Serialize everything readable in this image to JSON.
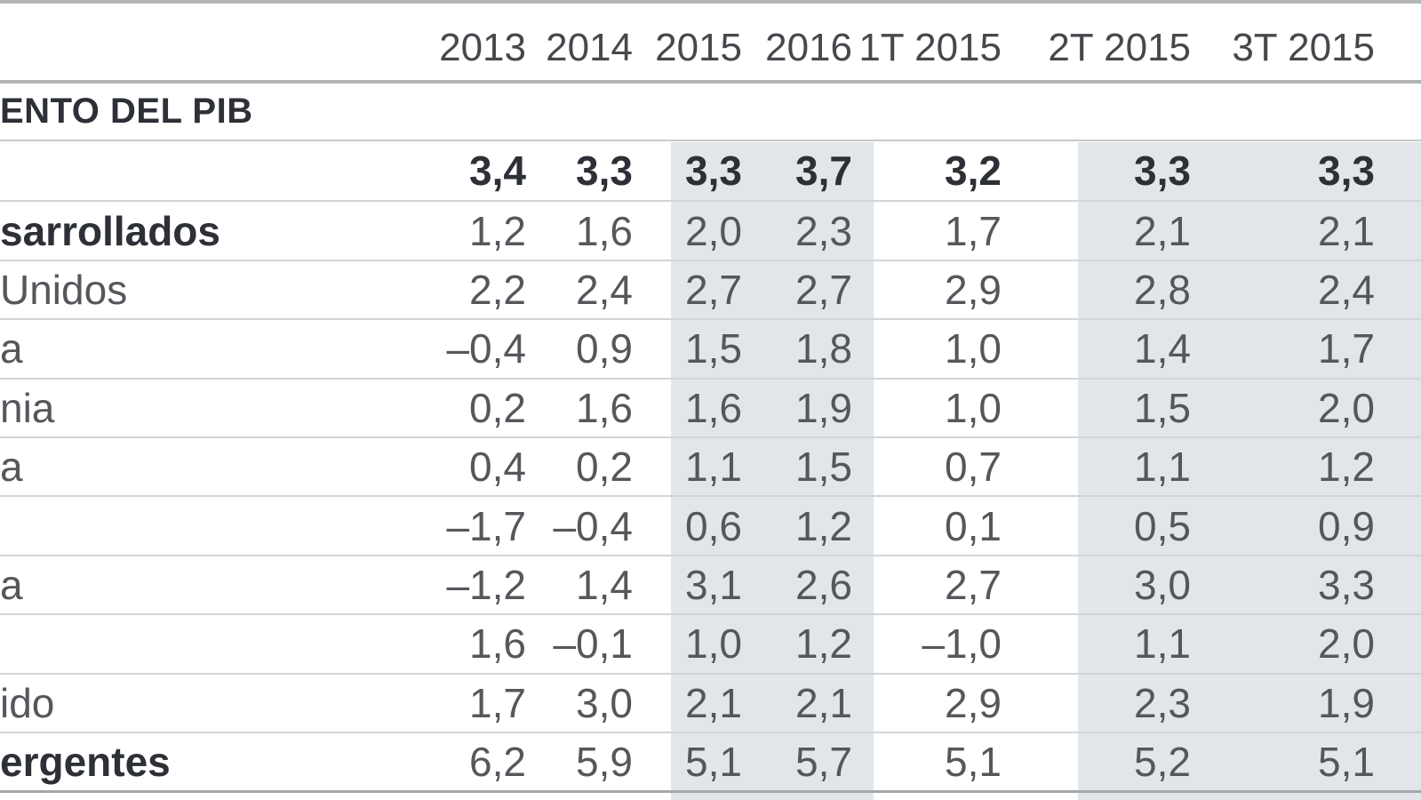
{
  "colors": {
    "band_background": "#e3e6e8",
    "top_bar": "#b4b7b9",
    "thick_rule": "#b1b5b7",
    "row_separator": "#d2d5d7",
    "bottom_rule": "#a4a8ab",
    "text_regular": "#54575b",
    "text_bold": "#2d3036",
    "header_text": "#45484c"
  },
  "chart_data": {
    "type": "table",
    "section_title": "ENTO DEL PIB",
    "columns": [
      "2013",
      "2014",
      "2015",
      "2016",
      "1T 2015",
      "2T 2015",
      "3T 2015"
    ],
    "shaded_columns": [
      "2015",
      "2016",
      "2T 2015",
      "3T 2015"
    ],
    "rows": [
      {
        "label": "",
        "label_bold": false,
        "values_bold": true,
        "values": [
          "3,4",
          "3,3",
          "3,3",
          "3,7",
          "3,2",
          "3,3",
          "3,3"
        ]
      },
      {
        "label": "sarrollados",
        "label_bold": true,
        "values_bold": false,
        "values": [
          "1,2",
          "1,6",
          "2,0",
          "2,3",
          "1,7",
          "2,1",
          "2,1"
        ]
      },
      {
        "label": "Unidos",
        "label_bold": false,
        "values_bold": false,
        "values": [
          "2,2",
          "2,4",
          "2,7",
          "2,7",
          "2,9",
          "2,8",
          "2,4"
        ]
      },
      {
        "label": "a",
        "label_bold": false,
        "values_bold": false,
        "values": [
          "–0,4",
          "0,9",
          "1,5",
          "1,8",
          "1,0",
          "1,4",
          "1,7"
        ]
      },
      {
        "label": "nia",
        "label_bold": false,
        "values_bold": false,
        "values": [
          "0,2",
          "1,6",
          "1,6",
          "1,9",
          "1,0",
          "1,5",
          "2,0"
        ]
      },
      {
        "label": "a",
        "label_bold": false,
        "values_bold": false,
        "values": [
          "0,4",
          "0,2",
          "1,1",
          "1,5",
          "0,7",
          "1,1",
          "1,2"
        ]
      },
      {
        "label": "",
        "label_bold": false,
        "values_bold": false,
        "values": [
          "–1,7",
          "–0,4",
          "0,6",
          "1,2",
          "0,1",
          "0,5",
          "0,9"
        ]
      },
      {
        "label": "a",
        "label_bold": false,
        "values_bold": false,
        "values": [
          "–1,2",
          "1,4",
          "3,1",
          "2,6",
          "2,7",
          "3,0",
          "3,3"
        ]
      },
      {
        "label": "",
        "label_bold": false,
        "values_bold": false,
        "values": [
          "1,6",
          "–0,1",
          "1,0",
          "1,2",
          "–1,0",
          "1,1",
          "2,0"
        ]
      },
      {
        "label": "ido",
        "label_bold": false,
        "values_bold": false,
        "values": [
          "1,7",
          "3,0",
          "2,1",
          "2,1",
          "2,9",
          "2,3",
          "1,9"
        ]
      },
      {
        "label": "ergentes",
        "label_bold": true,
        "values_bold": false,
        "values": [
          "6,2",
          "5,9",
          "5,1",
          "5,7",
          "5,1",
          "5,2",
          "5,1"
        ]
      }
    ]
  }
}
